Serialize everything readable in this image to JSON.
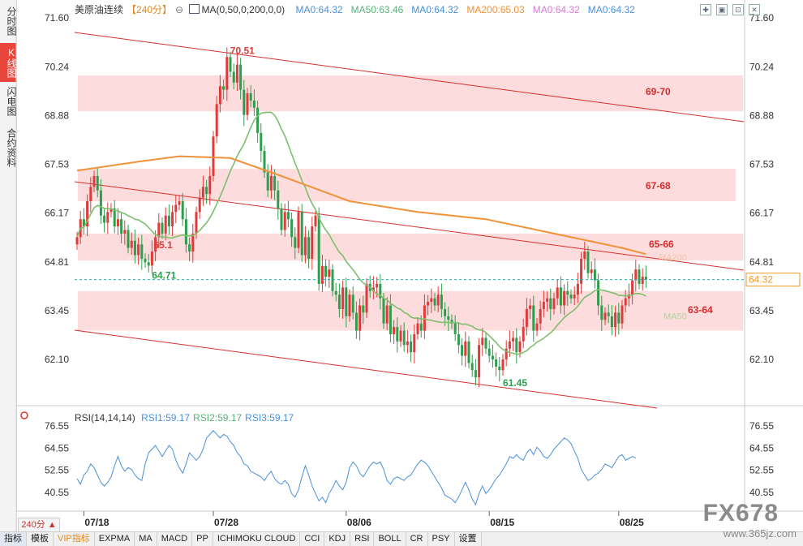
{
  "side_tabs": [
    {
      "label": "分时图",
      "active": false
    },
    {
      "label": "K线图",
      "active": true
    },
    {
      "label": "闪电图",
      "active": false
    },
    {
      "label": "合约资料",
      "active": false
    }
  ],
  "legend": {
    "symbol": "美原油连续",
    "period": "【240分】",
    "toggle_icon": "⊖",
    "ma_icon": "chart-icon",
    "ma_params": "MA(0,50,0,200,0,0)",
    "items": [
      {
        "label": "MA0:64.32",
        "color": "#4a90d9"
      },
      {
        "label": "MA50:63.46",
        "color": "#5ab07a"
      },
      {
        "label": "MA0:64.32",
        "color": "#4a90d9"
      },
      {
        "label": "MA200:65.03",
        "color": "#f0923a"
      },
      {
        "label": "MA0:64.32",
        "color": "#d97ad9"
      },
      {
        "label": "MA0:64.32",
        "color": "#4a90d9"
      }
    ]
  },
  "rsi_legend": {
    "params": "RSI(14,14,14)",
    "items": [
      {
        "label": "RSI1:59.17",
        "color": "#4a90d9"
      },
      {
        "label": "RSI2:59.17",
        "color": "#5ab07a"
      },
      {
        "label": "RSI3:59.17",
        "color": "#4a90d9"
      }
    ]
  },
  "bottom_bar": {
    "period_badge": "240分 ▲",
    "items": [
      "指标",
      "模板",
      "VIP指标",
      "EXPMA",
      "MA",
      "MACD",
      "PP",
      "ICHIMOKU CLOUD",
      "CCI",
      "KDJ",
      "RSI",
      "BOLL",
      "CR",
      "PSY",
      "设置"
    ]
  },
  "watermark": {
    "big": "FX678",
    "small": "www.365jz.com"
  },
  "colors": {
    "up": "#e03a3a",
    "down": "#2e9e4e",
    "zone": "#fbd6d6",
    "channel": "#d43030",
    "ma50": "#7cbf6c",
    "ma200": "#f0923a",
    "rsi": "#4a90d9",
    "last": "#f29b2a"
  },
  "chart_data": [
    {
      "type": "candlestick",
      "title": "美原油连续",
      "period": "240分",
      "ylim": [
        61.45,
        71.6
      ],
      "y_ticks": [
        "71.60",
        "70.24",
        "68.88",
        "67.53",
        "66.17",
        "64.81",
        "63.45",
        "62.10"
      ],
      "x_ticks": [
        {
          "label": "07/18",
          "index": 2
        },
        {
          "label": "07/28",
          "index": 40
        },
        {
          "label": "08/06",
          "index": 79
        },
        {
          "label": "08/15",
          "index": 121
        },
        {
          "label": "08/25",
          "index": 159
        }
      ],
      "ohlc_close": [
        65.5,
        66.0,
        65.8,
        66.5,
        66.9,
        67.2,
        66.8,
        66.1,
        65.9,
        66.2,
        66.3,
        65.8,
        66.0,
        65.6,
        65.7,
        65.2,
        65.4,
        65.0,
        65.3,
        64.9,
        64.8,
        64.71,
        65.1,
        65.5,
        65.9,
        65.6,
        66.1,
        65.8,
        66.2,
        66.4,
        66.5,
        66.0,
        65.3,
        65.1,
        65.6,
        66.2,
        66.6,
        66.9,
        66.7,
        67.2,
        68.3,
        69.2,
        69.7,
        69.6,
        70.51,
        70.1,
        69.8,
        70.3,
        69.6,
        68.9,
        69.5,
        69.3,
        69.1,
        68.4,
        67.9,
        67.3,
        66.8,
        67.2,
        66.8,
        66.3,
        65.7,
        66.2,
        66.0,
        65.5,
        65.2,
        66.2,
        65.0,
        65.5,
        64.9,
        65.8,
        66.1,
        64.2,
        64.7,
        64.4,
        64.6,
        64.0,
        63.9,
        63.5,
        64.1,
        63.3,
        63.9,
        63.4,
        62.9,
        63.6,
        63.4,
        64.2,
        64.0,
        64.1,
        64.2,
        63.8,
        63.1,
        63.6,
        62.8,
        63.0,
        62.6,
        62.9,
        62.5,
        62.6,
        62.3,
        62.8,
        63.1,
        62.9,
        63.6,
        63.7,
        63.8,
        63.6,
        63.9,
        63.5,
        63.3,
        63.2,
        63.1,
        62.8,
        62.5,
        62.2,
        62.6,
        62.0,
        61.8,
        61.6,
        62.5,
        62.7,
        62.4,
        62.2,
        62.1,
        61.9,
        61.8,
        62.1,
        62.4,
        62.6,
        62.7,
        62.3,
        62.6,
        63.0,
        63.5,
        63.6,
        62.9,
        63.1,
        63.5,
        63.7,
        63.8,
        63.5,
        63.8,
        64.1,
        63.6,
        64.0,
        63.9,
        63.8,
        63.9,
        64.2,
        64.9,
        65.1,
        64.5,
        64.6,
        64.3,
        63.6,
        63.2,
        63.4,
        63.3,
        63.0,
        63.4,
        63.1,
        63.6,
        63.8,
        63.9,
        64.3,
        64.6,
        64.2,
        64.4,
        64.32
      ],
      "levels": {
        "high": 70.51,
        "low_left": 64.71,
        "low": 61.45,
        "recent_high": 65.1,
        "last": 64.32
      },
      "zones": [
        "69-70",
        "67-68",
        "65-66",
        "63-64"
      ],
      "ma_labels": {
        "ma200": "MA200",
        "ma50": "MA50"
      },
      "last_price_label": "64.32"
    },
    {
      "type": "line",
      "title": "RSI(14,14,14)",
      "ylim": [
        34.55,
        78.55
      ],
      "y_ticks": [
        "76.55",
        "64.55",
        "52.55",
        "40.55"
      ],
      "values": [
        48,
        45,
        50,
        52,
        56,
        54,
        50,
        46,
        44,
        46,
        49,
        55,
        60,
        55,
        52,
        54,
        53,
        50,
        48,
        47,
        56,
        62,
        64,
        66,
        63,
        60,
        63,
        66,
        64,
        58,
        54,
        51,
        56,
        62,
        60,
        58,
        60,
        64,
        70,
        72,
        74,
        72,
        70,
        72,
        71,
        68,
        66,
        62,
        60,
        56,
        55,
        52,
        51,
        50,
        49,
        47,
        50,
        52,
        48,
        46,
        45,
        47,
        45,
        40,
        38,
        42,
        49,
        55,
        50,
        44,
        40,
        36,
        38,
        35,
        40,
        43,
        47,
        44,
        42,
        46,
        54,
        57,
        55,
        51,
        49,
        52,
        55,
        57,
        56,
        57,
        53,
        47,
        45,
        48,
        49,
        48,
        47,
        49,
        50,
        53,
        56,
        58,
        57,
        55,
        52,
        49,
        46,
        43,
        39,
        38,
        37,
        35,
        38,
        42,
        46,
        42,
        37,
        34,
        40,
        44,
        40,
        42,
        45,
        48,
        50,
        53,
        56,
        60,
        59,
        61,
        59,
        58,
        62,
        64,
        61,
        65,
        63,
        60,
        59,
        61,
        64,
        66,
        68,
        70,
        69,
        67,
        63,
        59,
        53,
        50,
        47,
        48,
        50,
        51,
        53,
        56,
        55,
        54,
        57,
        60,
        61,
        58,
        59,
        60,
        59.17
      ]
    }
  ]
}
